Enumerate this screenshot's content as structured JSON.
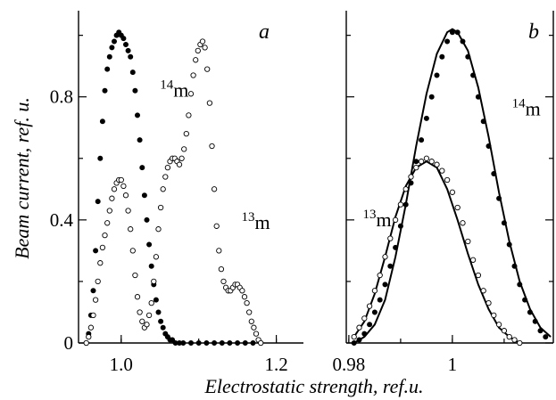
{
  "chart_data": [
    {
      "panel": "a",
      "type": "scatter",
      "xlabel": "Electrostatic strength, ref.u.",
      "ylabel": "Beam current, ref. u.",
      "xlim": [
        0.945,
        1.235
      ],
      "ylim": [
        0,
        1.08
      ],
      "xticks": [
        1.0,
        1.2
      ],
      "xtick_labels": [
        "1.0",
        "1.2"
      ],
      "yticks": [
        0,
        0.4,
        0.8
      ],
      "ytick_labels": [
        "0",
        "0.4",
        "0.8"
      ],
      "series": [
        {
          "name": "14m",
          "marker": "filled",
          "points": [
            [
              0.955,
              0.0
            ],
            [
              0.958,
              0.03
            ],
            [
              0.961,
              0.09
            ],
            [
              0.964,
              0.17
            ],
            [
              0.967,
              0.3
            ],
            [
              0.97,
              0.46
            ],
            [
              0.973,
              0.6
            ],
            [
              0.976,
              0.72
            ],
            [
              0.979,
              0.82
            ],
            [
              0.982,
              0.89
            ],
            [
              0.985,
              0.93
            ],
            [
              0.988,
              0.96
            ],
            [
              0.991,
              0.98
            ],
            [
              0.994,
              1.0
            ],
            [
              0.997,
              1.01
            ],
            [
              1.0,
              1.0
            ],
            [
              1.003,
              0.99
            ],
            [
              1.006,
              0.97
            ],
            [
              1.009,
              0.95
            ],
            [
              1.012,
              0.93
            ],
            [
              1.015,
              0.88
            ],
            [
              1.018,
              0.82
            ],
            [
              1.021,
              0.74
            ],
            [
              1.024,
              0.66
            ],
            [
              1.027,
              0.57
            ],
            [
              1.03,
              0.48
            ],
            [
              1.033,
              0.4
            ],
            [
              1.036,
              0.32
            ],
            [
              1.039,
              0.25
            ],
            [
              1.042,
              0.19
            ],
            [
              1.045,
              0.14
            ],
            [
              1.048,
              0.1
            ],
            [
              1.051,
              0.07
            ],
            [
              1.054,
              0.05
            ],
            [
              1.057,
              0.03
            ],
            [
              1.06,
              0.02
            ],
            [
              1.063,
              0.01
            ],
            [
              1.066,
              0.01
            ],
            [
              1.07,
              0.0
            ],
            [
              1.075,
              0.0
            ],
            [
              1.08,
              0.0
            ],
            [
              1.09,
              0.0
            ],
            [
              1.1,
              0.0
            ],
            [
              1.11,
              0.0
            ],
            [
              1.12,
              0.0
            ],
            [
              1.13,
              0.0
            ],
            [
              1.14,
              0.0
            ],
            [
              1.15,
              0.0
            ],
            [
              1.16,
              0.0
            ],
            [
              1.17,
              0.0
            ],
            [
              1.18,
              0.0
            ]
          ]
        },
        {
          "name": "13m",
          "marker": "open",
          "points": [
            [
              0.955,
              0.0
            ],
            [
              0.958,
              0.02
            ],
            [
              0.961,
              0.05
            ],
            [
              0.964,
              0.09
            ],
            [
              0.967,
              0.14
            ],
            [
              0.97,
              0.2
            ],
            [
              0.973,
              0.26
            ],
            [
              0.976,
              0.31
            ],
            [
              0.979,
              0.35
            ],
            [
              0.982,
              0.39
            ],
            [
              0.985,
              0.43
            ],
            [
              0.988,
              0.47
            ],
            [
              0.991,
              0.5
            ],
            [
              0.994,
              0.52
            ],
            [
              0.997,
              0.53
            ],
            [
              1.0,
              0.53
            ],
            [
              1.003,
              0.51
            ],
            [
              1.006,
              0.48
            ],
            [
              1.009,
              0.43
            ],
            [
              1.012,
              0.37
            ],
            [
              1.015,
              0.3
            ],
            [
              1.018,
              0.22
            ],
            [
              1.021,
              0.15
            ],
            [
              1.024,
              0.1
            ],
            [
              1.027,
              0.07
            ],
            [
              1.03,
              0.05
            ],
            [
              1.033,
              0.06
            ],
            [
              1.036,
              0.09
            ],
            [
              1.039,
              0.13
            ],
            [
              1.042,
              0.2
            ],
            [
              1.045,
              0.28
            ],
            [
              1.048,
              0.37
            ],
            [
              1.051,
              0.44
            ],
            [
              1.054,
              0.5
            ],
            [
              1.057,
              0.54
            ],
            [
              1.06,
              0.57
            ],
            [
              1.063,
              0.59
            ],
            [
              1.066,
              0.6
            ],
            [
              1.069,
              0.6
            ],
            [
              1.072,
              0.59
            ],
            [
              1.075,
              0.58
            ],
            [
              1.078,
              0.6
            ],
            [
              1.081,
              0.63
            ],
            [
              1.084,
              0.68
            ],
            [
              1.087,
              0.74
            ],
            [
              1.09,
              0.81
            ],
            [
              1.093,
              0.87
            ],
            [
              1.096,
              0.92
            ],
            [
              1.099,
              0.95
            ],
            [
              1.102,
              0.97
            ],
            [
              1.105,
              0.98
            ],
            [
              1.108,
              0.96
            ],
            [
              1.111,
              0.89
            ],
            [
              1.114,
              0.78
            ],
            [
              1.117,
              0.64
            ],
            [
              1.12,
              0.5
            ],
            [
              1.123,
              0.38
            ],
            [
              1.126,
              0.3
            ],
            [
              1.129,
              0.24
            ],
            [
              1.132,
              0.2
            ],
            [
              1.135,
              0.18
            ],
            [
              1.138,
              0.17
            ],
            [
              1.141,
              0.17
            ],
            [
              1.144,
              0.18
            ],
            [
              1.147,
              0.19
            ],
            [
              1.15,
              0.19
            ],
            [
              1.153,
              0.18
            ],
            [
              1.156,
              0.17
            ],
            [
              1.159,
              0.15
            ],
            [
              1.162,
              0.13
            ],
            [
              1.165,
              0.1
            ],
            [
              1.168,
              0.07
            ],
            [
              1.171,
              0.05
            ],
            [
              1.174,
              0.03
            ],
            [
              1.177,
              0.01
            ],
            [
              1.18,
              0.0
            ]
          ]
        }
      ],
      "annotations": [
        {
          "label_sup": "14",
          "label_main": "m",
          "x": 1.05,
          "y": 0.8
        },
        {
          "label_sup": "13",
          "label_main": "m",
          "x": 1.155,
          "y": 0.37
        }
      ]
    },
    {
      "panel": "b",
      "type": "scatter",
      "xlabel": "Electrostatic strength, ref.u.",
      "xlim": [
        0.9795,
        1.0195
      ],
      "ylim": [
        0,
        1.08
      ],
      "xticks": [
        0.98,
        1.0
      ],
      "xtick_labels": [
        "0.98",
        "1"
      ],
      "series": [
        {
          "name": "14m",
          "marker": "filled",
          "points": [
            [
              0.981,
              0.0
            ],
            [
              0.982,
              0.01
            ],
            [
              0.983,
              0.03
            ],
            [
              0.984,
              0.06
            ],
            [
              0.985,
              0.1
            ],
            [
              0.986,
              0.14
            ],
            [
              0.987,
              0.19
            ],
            [
              0.988,
              0.25
            ],
            [
              0.989,
              0.31
            ],
            [
              0.99,
              0.38
            ],
            [
              0.991,
              0.45
            ],
            [
              0.992,
              0.52
            ],
            [
              0.993,
              0.59
            ],
            [
              0.994,
              0.66
            ],
            [
              0.995,
              0.73
            ],
            [
              0.996,
              0.8
            ],
            [
              0.997,
              0.87
            ],
            [
              0.998,
              0.93
            ],
            [
              0.999,
              0.98
            ],
            [
              1.0,
              1.01
            ],
            [
              1.001,
              1.01
            ],
            [
              1.002,
              0.98
            ],
            [
              1.003,
              0.93
            ],
            [
              1.004,
              0.87
            ],
            [
              1.005,
              0.8
            ],
            [
              1.006,
              0.72
            ],
            [
              1.007,
              0.64
            ],
            [
              1.008,
              0.55
            ],
            [
              1.009,
              0.47
            ],
            [
              1.01,
              0.39
            ],
            [
              1.011,
              0.32
            ],
            [
              1.012,
              0.25
            ],
            [
              1.013,
              0.19
            ],
            [
              1.014,
              0.14
            ],
            [
              1.015,
              0.1
            ],
            [
              1.016,
              0.07
            ],
            [
              1.017,
              0.04
            ],
            [
              1.018,
              0.02
            ]
          ],
          "fit": [
            [
              0.981,
              0.0
            ],
            [
              0.983,
              0.02
            ],
            [
              0.985,
              0.06
            ],
            [
              0.987,
              0.14
            ],
            [
              0.989,
              0.28
            ],
            [
              0.991,
              0.45
            ],
            [
              0.993,
              0.64
            ],
            [
              0.995,
              0.81
            ],
            [
              0.997,
              0.94
            ],
            [
              0.999,
              1.01
            ],
            [
              1.0,
              1.02
            ],
            [
              1.001,
              1.01
            ],
            [
              1.003,
              0.95
            ],
            [
              1.005,
              0.83
            ],
            [
              1.007,
              0.67
            ],
            [
              1.009,
              0.49
            ],
            [
              1.011,
              0.33
            ],
            [
              1.013,
              0.2
            ],
            [
              1.015,
              0.11
            ],
            [
              1.017,
              0.05
            ],
            [
              1.019,
              0.02
            ]
          ]
        },
        {
          "name": "13m",
          "marker": "open",
          "points": [
            [
              0.981,
              0.02
            ],
            [
              0.982,
              0.05
            ],
            [
              0.983,
              0.08
            ],
            [
              0.984,
              0.12
            ],
            [
              0.985,
              0.17
            ],
            [
              0.986,
              0.22
            ],
            [
              0.987,
              0.28
            ],
            [
              0.988,
              0.34
            ],
            [
              0.989,
              0.4
            ],
            [
              0.99,
              0.45
            ],
            [
              0.991,
              0.5
            ],
            [
              0.992,
              0.54
            ],
            [
              0.993,
              0.57
            ],
            [
              0.994,
              0.59
            ],
            [
              0.995,
              0.6
            ],
            [
              0.996,
              0.59
            ],
            [
              0.997,
              0.58
            ],
            [
              0.998,
              0.56
            ],
            [
              0.999,
              0.53
            ],
            [
              1.0,
              0.49
            ],
            [
              1.001,
              0.44
            ],
            [
              1.002,
              0.39
            ],
            [
              1.003,
              0.33
            ],
            [
              1.004,
              0.27
            ],
            [
              1.005,
              0.22
            ],
            [
              1.006,
              0.17
            ],
            [
              1.007,
              0.13
            ],
            [
              1.008,
              0.09
            ],
            [
              1.009,
              0.06
            ],
            [
              1.01,
              0.04
            ],
            [
              1.011,
              0.02
            ],
            [
              1.012,
              0.01
            ],
            [
              1.013,
              0.0
            ]
          ],
          "fit": [
            [
              0.981,
              0.02
            ],
            [
              0.983,
              0.07
            ],
            [
              0.985,
              0.16
            ],
            [
              0.987,
              0.28
            ],
            [
              0.989,
              0.41
            ],
            [
              0.991,
              0.51
            ],
            [
              0.993,
              0.57
            ],
            [
              0.995,
              0.59
            ],
            [
              0.997,
              0.57
            ],
            [
              0.999,
              0.5
            ],
            [
              1.001,
              0.4
            ],
            [
              1.003,
              0.29
            ],
            [
              1.005,
              0.19
            ],
            [
              1.007,
              0.11
            ],
            [
              1.009,
              0.05
            ],
            [
              1.011,
              0.02
            ],
            [
              1.013,
              0.0
            ]
          ]
        }
      ],
      "annotations": [
        {
          "label_sup": "14",
          "label_main": "m",
          "x": 1.0115,
          "y": 0.74
        },
        {
          "label_sup": "13",
          "label_main": "m",
          "x": 0.9827,
          "y": 0.38
        }
      ]
    }
  ]
}
